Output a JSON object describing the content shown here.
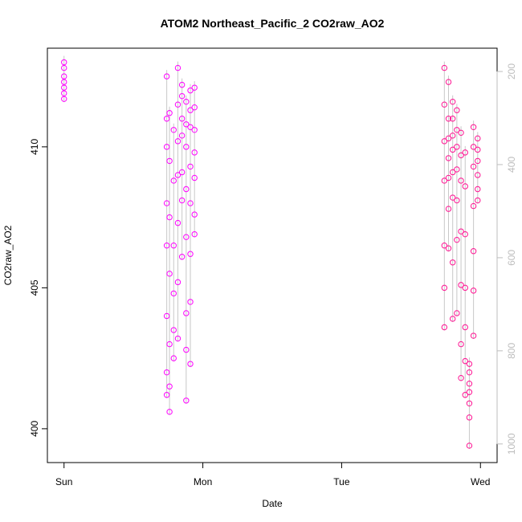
{
  "chart_data": {
    "type": "scatter",
    "title": "ATOM2 Northeast_Pacific_2 CO2raw_AO2",
    "xlabel": "Date",
    "ylabel": "CO2raw_AO2",
    "x_ticks": [
      "Sun",
      "Mon",
      "Tue",
      "Wed"
    ],
    "x_tick_positions_days": [
      0,
      1,
      2,
      3
    ],
    "x_range_days": [
      -0.12,
      3.12
    ],
    "y_ticks": [
      400,
      405,
      410
    ],
    "ylim": [
      398.8,
      413.5
    ],
    "y2_ticks": [
      200,
      400,
      600,
      800,
      1000
    ],
    "y2_range": [
      1040,
      150
    ],
    "grid": false,
    "colors": {
      "group_sun_mon": "#ff00ff",
      "group_wed": "#ff1493",
      "profile_lines": "#c8c8c8",
      "axis_right": "#bdbdbd"
    },
    "series": [
      {
        "points": [
          [
            0.0,
            413.0
          ],
          [
            0.0,
            412.8
          ],
          [
            0.0,
            412.5
          ],
          [
            0.0,
            412.3
          ],
          [
            0.0,
            412.1
          ],
          [
            0.0,
            411.9
          ],
          [
            0.0,
            411.7
          ],
          [
            0.74,
            412.5
          ],
          [
            0.74,
            411.0
          ],
          [
            0.74,
            410.0
          ],
          [
            0.74,
            408.0
          ],
          [
            0.74,
            406.5
          ],
          [
            0.74,
            404.0
          ],
          [
            0.74,
            402.0
          ],
          [
            0.74,
            401.2
          ],
          [
            0.76,
            411.2
          ],
          [
            0.76,
            409.5
          ],
          [
            0.76,
            407.5
          ],
          [
            0.76,
            405.5
          ],
          [
            0.76,
            403.0
          ],
          [
            0.76,
            401.5
          ],
          [
            0.76,
            400.6
          ],
          [
            0.79,
            410.6
          ],
          [
            0.79,
            408.8
          ],
          [
            0.79,
            406.5
          ],
          [
            0.79,
            404.8
          ],
          [
            0.79,
            403.5
          ],
          [
            0.79,
            402.5
          ],
          [
            0.82,
            412.8
          ],
          [
            0.82,
            411.5
          ],
          [
            0.82,
            410.2
          ],
          [
            0.82,
            409.0
          ],
          [
            0.82,
            407.3
          ],
          [
            0.82,
            405.2
          ],
          [
            0.82,
            403.2
          ],
          [
            0.85,
            412.2
          ],
          [
            0.85,
            411.8
          ],
          [
            0.85,
            411.0
          ],
          [
            0.85,
            410.4
          ],
          [
            0.85,
            409.1
          ],
          [
            0.85,
            408.1
          ],
          [
            0.85,
            406.1
          ],
          [
            0.88,
            411.6
          ],
          [
            0.88,
            410.8
          ],
          [
            0.88,
            410.0
          ],
          [
            0.88,
            408.5
          ],
          [
            0.88,
            406.8
          ],
          [
            0.88,
            404.1
          ],
          [
            0.88,
            402.8
          ],
          [
            0.88,
            401.0
          ],
          [
            0.91,
            412.0
          ],
          [
            0.91,
            411.3
          ],
          [
            0.91,
            410.7
          ],
          [
            0.91,
            409.3
          ],
          [
            0.91,
            408.0
          ],
          [
            0.91,
            406.2
          ],
          [
            0.91,
            404.5
          ],
          [
            0.91,
            402.3
          ],
          [
            0.94,
            412.1
          ],
          [
            0.94,
            411.4
          ],
          [
            0.94,
            410.6
          ],
          [
            0.94,
            409.8
          ],
          [
            0.94,
            408.9
          ],
          [
            0.94,
            407.6
          ],
          [
            0.94,
            406.9
          ]
        ]
      },
      {
        "points": [
          [
            2.74,
            412.8
          ],
          [
            2.74,
            411.5
          ],
          [
            2.74,
            410.2
          ],
          [
            2.74,
            408.8
          ],
          [
            2.74,
            406.5
          ],
          [
            2.74,
            405.0
          ],
          [
            2.74,
            403.6
          ],
          [
            2.77,
            412.3
          ],
          [
            2.77,
            411.0
          ],
          [
            2.77,
            410.3
          ],
          [
            2.77,
            409.6
          ],
          [
            2.77,
            408.9
          ],
          [
            2.77,
            407.8
          ],
          [
            2.77,
            406.4
          ],
          [
            2.8,
            411.6
          ],
          [
            2.8,
            411.0
          ],
          [
            2.8,
            410.4
          ],
          [
            2.8,
            409.9
          ],
          [
            2.8,
            409.1
          ],
          [
            2.8,
            408.2
          ],
          [
            2.8,
            405.9
          ],
          [
            2.8,
            403.9
          ],
          [
            2.83,
            411.3
          ],
          [
            2.83,
            410.6
          ],
          [
            2.83,
            410.0
          ],
          [
            2.83,
            409.2
          ],
          [
            2.83,
            408.1
          ],
          [
            2.83,
            406.7
          ],
          [
            2.83,
            404.1
          ],
          [
            2.86,
            410.5
          ],
          [
            2.86,
            409.7
          ],
          [
            2.86,
            408.8
          ],
          [
            2.86,
            407.0
          ],
          [
            2.86,
            405.1
          ],
          [
            2.86,
            403.0
          ],
          [
            2.86,
            401.8
          ],
          [
            2.89,
            409.8
          ],
          [
            2.89,
            408.6
          ],
          [
            2.89,
            406.9
          ],
          [
            2.89,
            405.0
          ],
          [
            2.89,
            403.6
          ],
          [
            2.89,
            402.4
          ],
          [
            2.89,
            401.2
          ],
          [
            2.92,
            402.3
          ],
          [
            2.92,
            402.0
          ],
          [
            2.92,
            401.6
          ],
          [
            2.92,
            401.3
          ],
          [
            2.92,
            400.9
          ],
          [
            2.92,
            400.4
          ],
          [
            2.92,
            399.4
          ],
          [
            2.95,
            410.7
          ],
          [
            2.95,
            410.0
          ],
          [
            2.95,
            409.3
          ],
          [
            2.95,
            407.9
          ],
          [
            2.95,
            406.3
          ],
          [
            2.95,
            404.9
          ],
          [
            2.95,
            403.3
          ],
          [
            2.98,
            410.3
          ],
          [
            2.98,
            409.9
          ],
          [
            2.98,
            409.5
          ],
          [
            2.98,
            409.0
          ],
          [
            2.98,
            408.5
          ],
          [
            2.98,
            408.1
          ]
        ]
      }
    ]
  }
}
